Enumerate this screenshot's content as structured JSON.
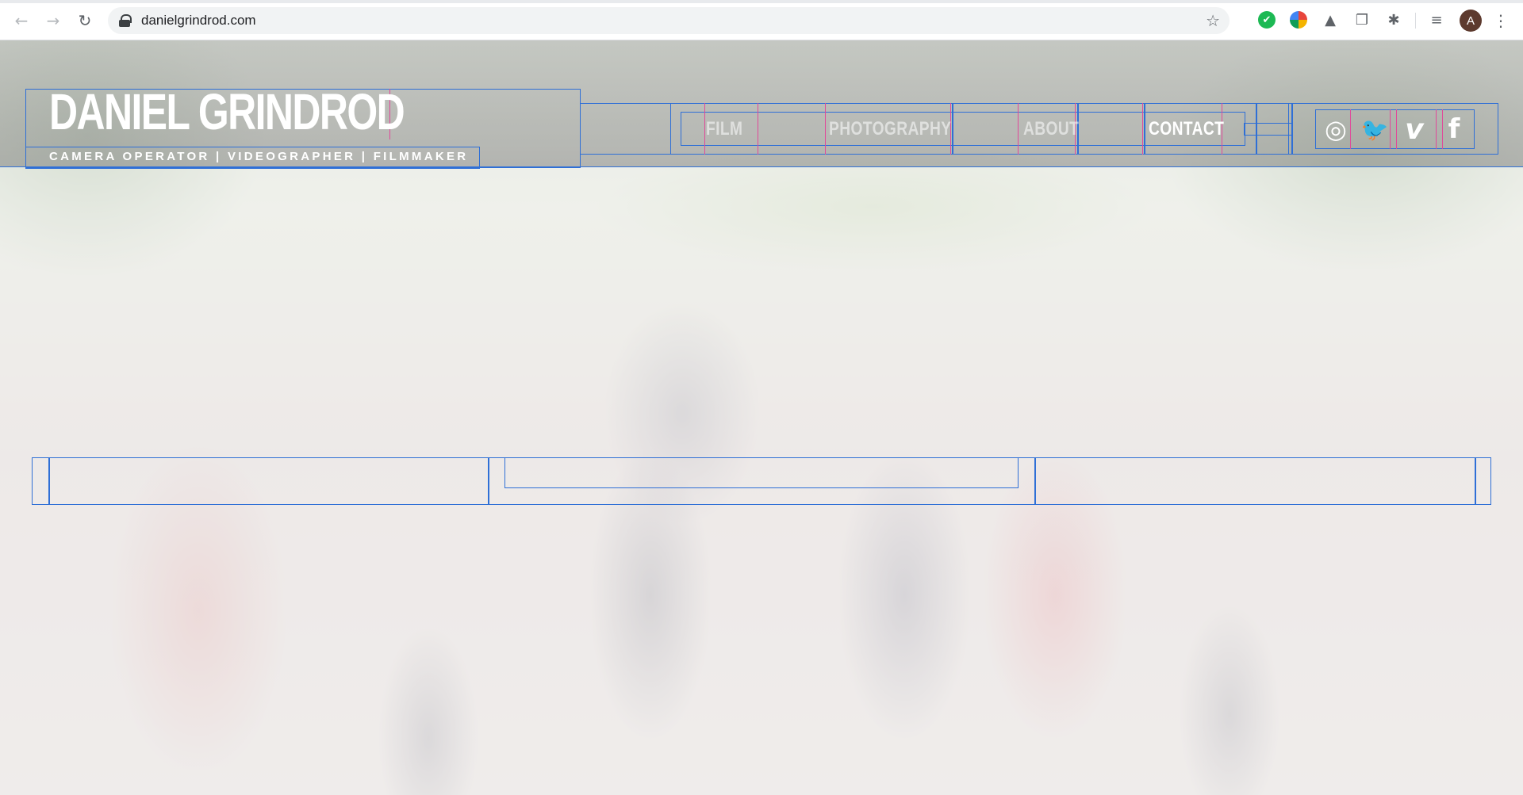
{
  "browser": {
    "back_glyph": "←",
    "forward_glyph": "→",
    "reload_glyph": "↻",
    "url": "danielgrindrod.com",
    "bookmark_glyph": "☆",
    "extensions": [
      {
        "name": "check-extension-icon",
        "glyph": "✔"
      },
      {
        "name": "globe-extension-icon",
        "glyph": ""
      },
      {
        "name": "drive-extension-icon",
        "glyph": "▲"
      },
      {
        "name": "copy-extension-icon",
        "glyph": "❐"
      },
      {
        "name": "bug-extension-icon",
        "glyph": "✱"
      },
      {
        "name": "media-extension-icon",
        "glyph": "≡"
      }
    ],
    "profile_initial": "A",
    "menu_glyph": "⋮"
  },
  "site": {
    "title": "DANIEL GRINDROD",
    "tagline": "CAMERA OPERATOR | VIDEOGRAPHER | FILMMAKER",
    "nav": {
      "items": [
        {
          "label": "FILM"
        },
        {
          "label": "PHOTOGRAPHY"
        },
        {
          "label": "ABOUT"
        },
        {
          "label": "CONTACT"
        }
      ]
    },
    "social": [
      {
        "name": "instagram-icon",
        "glyph": "◎"
      },
      {
        "name": "twitter-icon",
        "glyph": "🐦"
      },
      {
        "name": "vimeo-icon",
        "glyph": "v"
      },
      {
        "name": "facebook-icon",
        "glyph": "f"
      }
    ]
  },
  "colors": {
    "guide_blue": "#2f6fd6",
    "guide_pink": "#e04a9a",
    "chrome_bg": "#ffffff",
    "omnibox_bg": "#f1f3f4"
  }
}
